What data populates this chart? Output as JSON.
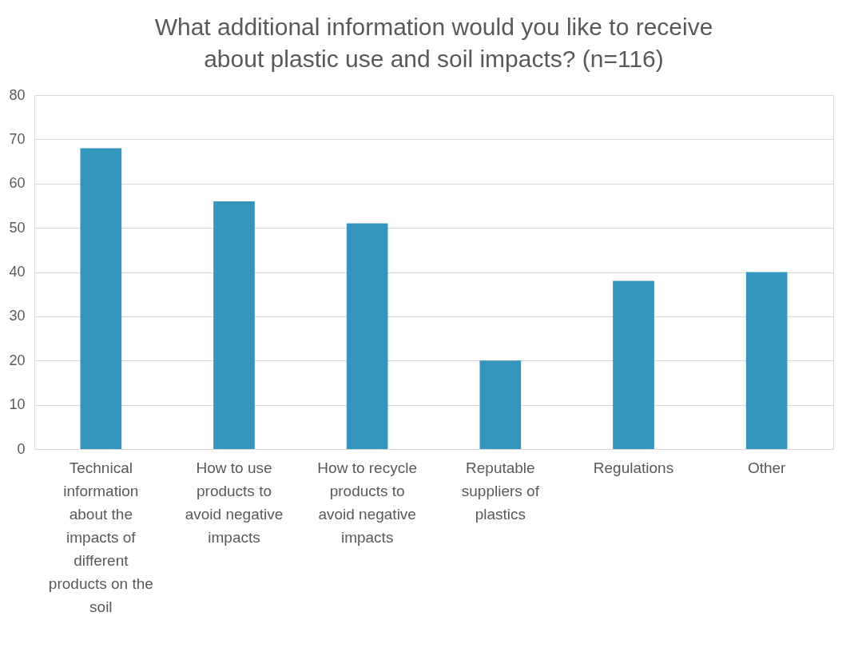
{
  "chart_data": {
    "type": "bar",
    "title": "What additional information would you like to receive about plastic use and soil impacts? (n=116)",
    "categories": [
      "Technical information about the impacts of different products on the soil",
      "How to use products to avoid negative impacts",
      "How to recycle products to avoid negative impacts",
      "Reputable suppliers of plastics",
      "Regulations",
      "Other"
    ],
    "values": [
      68,
      56,
      51,
      20,
      38,
      40
    ],
    "color": "#3496bd",
    "ylim": [
      0,
      80
    ],
    "yticks": [
      0,
      10,
      20,
      30,
      40,
      50,
      60,
      70,
      80
    ],
    "grid": "y"
  }
}
